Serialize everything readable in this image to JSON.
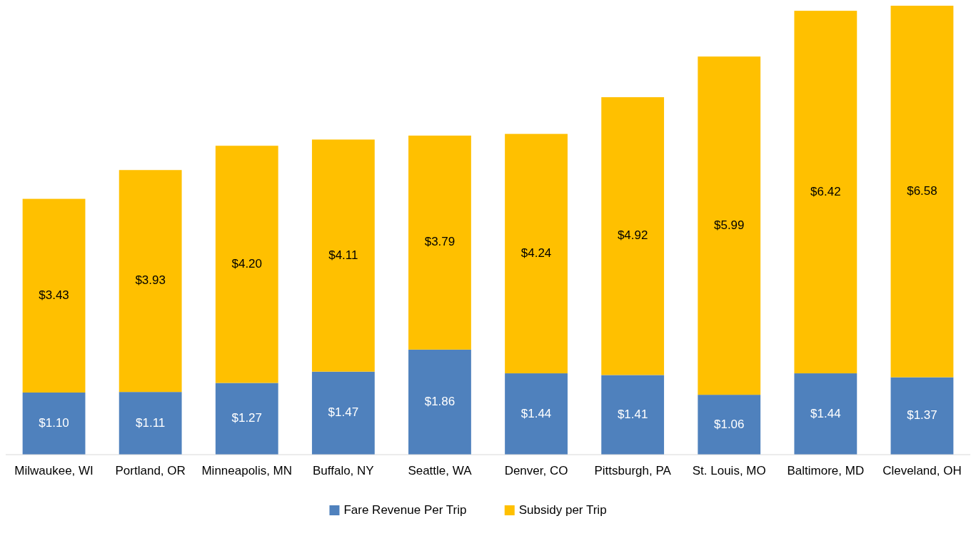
{
  "chart_data": {
    "type": "bar",
    "stacked": true,
    "legend": "bottom",
    "categories": [
      "Milwaukee, WI",
      "Portland, OR",
      "Minneapolis, MN",
      "Buffalo, NY",
      "Seattle, WA",
      "Denver, CO",
      "Pittsburgh, PA",
      "St. Louis, MO",
      "Baltimore, MD",
      "Cleveland, OH"
    ],
    "series": [
      {
        "name": "Fare Revenue Per Trip",
        "color": "#4f81bd",
        "values": [
          1.1,
          1.11,
          1.27,
          1.47,
          1.86,
          1.44,
          1.41,
          1.06,
          1.44,
          1.37
        ],
        "value_labels": [
          "$1.10",
          "$1.11",
          "$1.27",
          "$1.47",
          "$1.86",
          "$1.44",
          "$1.41",
          "$1.06",
          "$1.44",
          "$1.37"
        ]
      },
      {
        "name": "Subsidy per Trip",
        "color": "#ffc000",
        "values": [
          3.43,
          3.93,
          4.2,
          4.11,
          3.79,
          4.24,
          4.92,
          5.99,
          6.42,
          6.58
        ],
        "value_labels": [
          "$3.43",
          "$3.93",
          "$4.20",
          "$4.11",
          "$3.79",
          "$4.24",
          "$4.92",
          "$5.99",
          "$6.42",
          "$6.58"
        ]
      }
    ]
  }
}
